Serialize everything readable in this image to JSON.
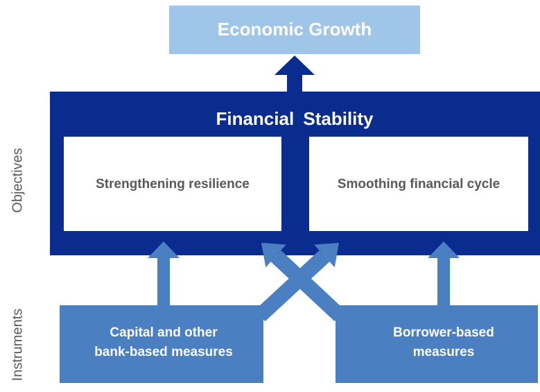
{
  "top": {
    "label": "Economic Growth"
  },
  "objectives": {
    "title": "Financial Stability",
    "items": [
      "Strengthening resilience",
      "Smoothing financial cycle"
    ]
  },
  "instruments": {
    "items": [
      [
        "Capital and other",
        "bank-based measures"
      ],
      [
        "Borrower-based",
        "measures"
      ]
    ]
  },
  "side_labels": [
    "Objectives",
    "Instruments"
  ]
}
